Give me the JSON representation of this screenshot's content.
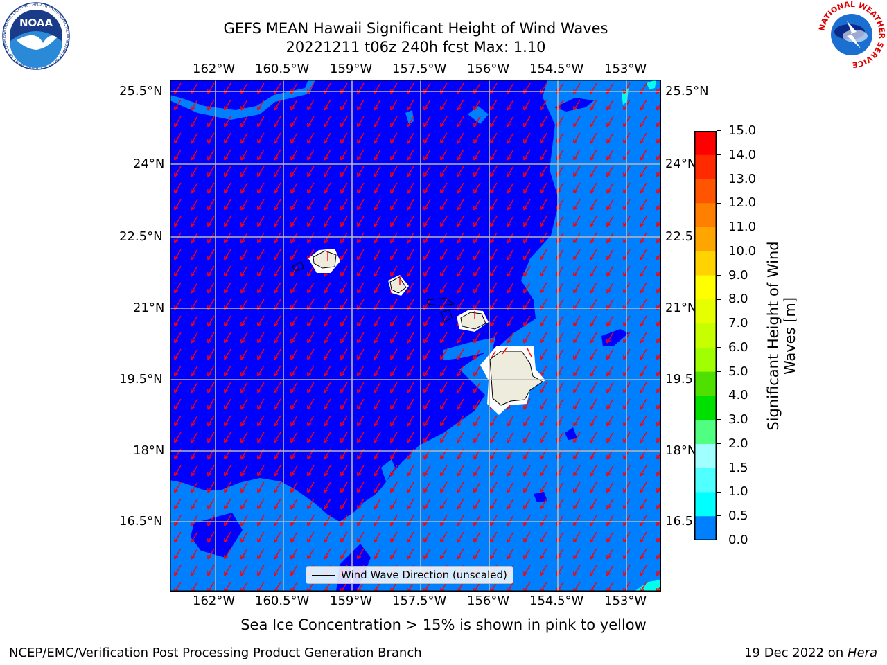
{
  "title": {
    "line1": "GEFS MEAN Hawaii Significant Height of Wind Waves",
    "line2": "20221211 t06z 240h fcst   Max: 1.10"
  },
  "map": {
    "lon_labels": [
      "162°W",
      "160.5°W",
      "159°W",
      "157.5°W",
      "156°W",
      "154.5°W",
      "153°W"
    ],
    "lat_labels_left": [
      "25.5°N",
      "24°N",
      "22.5°N",
      "21°N",
      "19.5°N",
      "18°N",
      "16.5°N"
    ],
    "lat_labels_right": [
      "25.5°N",
      "24°N",
      "22.5",
      "21°N",
      "19.5",
      "18°N",
      "16.5"
    ],
    "legend_label": "Wind Wave Direction (unscaled)",
    "colors": {
      "deep": "#0000ff",
      "shallow": "#0080ff",
      "cyan": "#00ffee",
      "land": "#eeecdc",
      "arrow": "#ff0000"
    }
  },
  "colorbar": {
    "label_line1": "Significant Height of Wind",
    "label_line2": "Waves [m]",
    "ticks": [
      "15.0",
      "14.0",
      "13.0",
      "12.0",
      "11.0",
      "10.0",
      "9.0",
      "8.0",
      "7.0",
      "6.0",
      "5.0",
      "4.0",
      "3.0",
      "2.0",
      "1.5",
      "1.0",
      "0.5",
      "0.0"
    ],
    "colors": [
      "#ff0000",
      "#ff2a00",
      "#ff5500",
      "#ff8000",
      "#ffa500",
      "#ffd200",
      "#ffff00",
      "#e6ff00",
      "#c8ff00",
      "#a0ff00",
      "#50e000",
      "#00e000",
      "#50ff80",
      "#a0ffff",
      "#50ffff",
      "#00ffff",
      "#0080ff",
      "#0000ff"
    ]
  },
  "note": "Sea Ice Concentration > 15% is shown in pink to yellow",
  "footer": {
    "left": "NCEP/EMC/Verification Post Processing Product Generation Branch",
    "right_prefix": "19 Dec 2022 on ",
    "right_host": "Hera"
  },
  "logos": {
    "noaa_text": "NOAA",
    "noaa_ring": "NATIONAL OCEANIC AND ATMOSPHERIC ADMINISTRATION · U.S. DEPARTMENT OF COMMERCE",
    "nws_ring": "NATIONAL WEATHER SERVICE"
  }
}
